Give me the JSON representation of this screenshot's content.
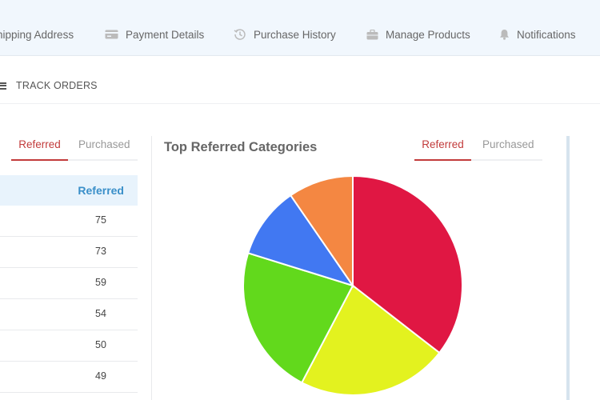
{
  "nav": {
    "items": [
      {
        "label": "hipping Address",
        "icon": "map-pin-icon"
      },
      {
        "label": "Payment Details",
        "icon": "credit-card-icon"
      },
      {
        "label": "Purchase History",
        "icon": "history-icon"
      },
      {
        "label": "Manage Products",
        "icon": "briefcase-icon"
      },
      {
        "label": "Notifications",
        "icon": "bell-icon"
      }
    ]
  },
  "track_orders": {
    "label": "TRACK ORDERS",
    "icon": "menu-icon"
  },
  "left_panel": {
    "tabs": [
      {
        "label": "Referred",
        "active": true
      },
      {
        "label": "Purchased",
        "active": false
      }
    ],
    "table": {
      "header": "Referred",
      "rows": [
        "75",
        "73",
        "59",
        "54",
        "50",
        "49"
      ]
    }
  },
  "chart_panel": {
    "title": "Top Referred Categories",
    "tabs": [
      {
        "label": "Referred",
        "active": true
      },
      {
        "label": "Purchased",
        "active": false
      }
    ]
  },
  "colors": {
    "accent": "#c23b3b",
    "header_blue": "#3a8fc9"
  },
  "chart_data": {
    "type": "pie",
    "title": "Top Referred Categories",
    "slices": [
      {
        "label": "",
        "value": 35.5,
        "color": "#e01743"
      },
      {
        "label": "",
        "value": 22.2,
        "color": "#e3f21f"
      },
      {
        "label": "",
        "value": 22.1,
        "color": "#62d91c"
      },
      {
        "label": "",
        "value": 10.6,
        "color": "#4178f2"
      },
      {
        "label": "",
        "value": 9.6,
        "color": "#f48742"
      }
    ]
  }
}
